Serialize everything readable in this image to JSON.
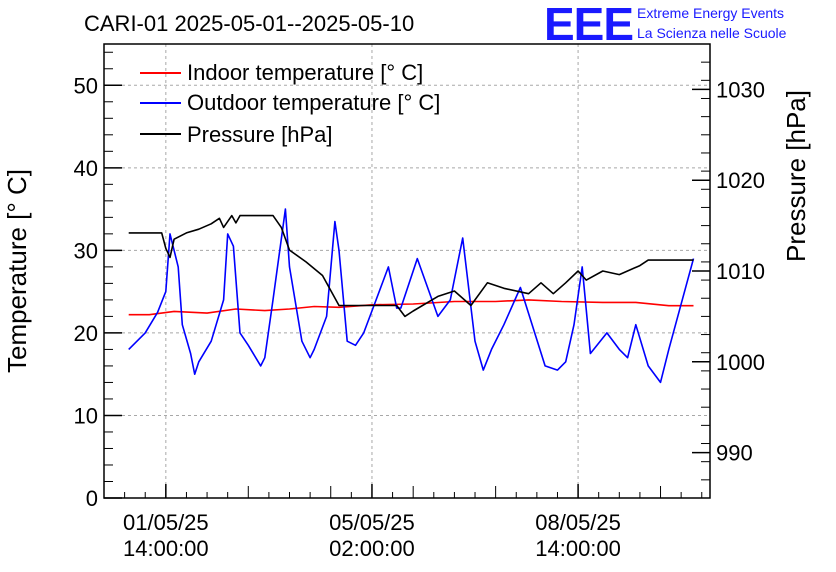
{
  "chart_data": {
    "type": "line",
    "title": "CARI-01 2025-05-01--2025-05-10",
    "ylabel": "Temperature [° C]",
    "y2label": "Pressure [hPa]",
    "ylim": [
      0,
      55
    ],
    "y2lim": [
      985,
      1035
    ],
    "xlim": [
      -0.75,
      6.6
    ],
    "grid": true,
    "legend_position": "top-left",
    "yticks": [
      0,
      10,
      20,
      30,
      40,
      50
    ],
    "y2ticks": [
      990,
      1000,
      1010,
      1020,
      1030
    ],
    "xticks": [
      {
        "x": 0,
        "line1": "01/05/25",
        "line2": "14:00:00"
      },
      {
        "x": 2.5,
        "line1": "05/05/25",
        "line2": "02:00:00"
      },
      {
        "x": 5,
        "line1": "08/05/25",
        "line2": "14:00:00"
      }
    ],
    "series": [
      {
        "name": "Indoor temperature [° C]",
        "color": "#ff0000",
        "axis": "left",
        "x": [
          -0.45,
          -0.2,
          0.1,
          0.5,
          0.85,
          1.2,
          1.5,
          1.8,
          2.1,
          2.5,
          3.0,
          3.5,
          4.0,
          4.4,
          4.8,
          5.3,
          5.7,
          6.1,
          6.4
        ],
        "y": [
          22.2,
          22.2,
          22.6,
          22.4,
          22.9,
          22.7,
          22.9,
          23.2,
          23.1,
          23.4,
          23.5,
          23.8,
          23.8,
          24.0,
          23.8,
          23.7,
          23.7,
          23.3,
          23.3
        ]
      },
      {
        "name": "Outdoor temperature [° C]",
        "color": "#0000ff",
        "axis": "left",
        "x": [
          -0.45,
          -0.25,
          -0.1,
          0.0,
          0.05,
          0.15,
          0.2,
          0.3,
          0.35,
          0.4,
          0.55,
          0.7,
          0.75,
          0.82,
          0.9,
          1.0,
          1.15,
          1.2,
          1.3,
          1.45,
          1.5,
          1.65,
          1.75,
          1.8,
          1.95,
          2.05,
          2.1,
          2.2,
          2.3,
          2.4,
          2.55,
          2.7,
          2.8,
          2.85,
          3.05,
          3.3,
          3.45,
          3.6,
          3.75,
          3.85,
          3.95,
          4.1,
          4.3,
          4.6,
          4.75,
          4.85,
          4.95,
          5.05,
          5.15,
          5.35,
          5.5,
          5.6,
          5.7,
          5.85,
          6.0,
          6.1,
          6.4
        ],
        "y": [
          18,
          20,
          22.5,
          25,
          32,
          28,
          21,
          17.5,
          15,
          16.5,
          19,
          24,
          32,
          30.5,
          20,
          18.5,
          16,
          17,
          24,
          35,
          28,
          19,
          17,
          18,
          22,
          33.5,
          30,
          19,
          18.5,
          20,
          24,
          28,
          23,
          23,
          29,
          22,
          24,
          31.5,
          19,
          15.5,
          18,
          21,
          25.5,
          16,
          15.5,
          16.5,
          21,
          28,
          17.5,
          20,
          18,
          17,
          21,
          16,
          14,
          18,
          29
        ]
      },
      {
        "name": "Pressure [hPa]",
        "color": "#000000",
        "axis": "right",
        "x": [
          -0.45,
          -0.05,
          0.0,
          0.05,
          0.1,
          0.25,
          0.4,
          0.55,
          0.65,
          0.7,
          0.8,
          0.85,
          0.9,
          1.3,
          1.4,
          1.5,
          1.7,
          1.9,
          2.1,
          2.3,
          2.5,
          2.6,
          2.7,
          2.8,
          2.9,
          3.0,
          3.3,
          3.5,
          3.7,
          3.9,
          4.1,
          4.4,
          4.55,
          4.7,
          4.85,
          5.0,
          5.1,
          5.3,
          5.5,
          5.75,
          5.85,
          5.95,
          6.4
        ],
        "y": [
          1014.2,
          1014.2,
          1012.5,
          1011.5,
          1013.5,
          1014.2,
          1014.6,
          1015.2,
          1015.8,
          1014.8,
          1016.1,
          1015.3,
          1016.1,
          1016.1,
          1014.8,
          1012.3,
          1011.0,
          1009.5,
          1006.2,
          1006.2,
          1006.2,
          1006.2,
          1006.2,
          1006.2,
          1005.0,
          1005.6,
          1007.2,
          1007.8,
          1006.2,
          1008.7,
          1008.1,
          1007.5,
          1008.7,
          1007.5,
          1008.7,
          1010.0,
          1009.0,
          1010.0,
          1009.6,
          1010.6,
          1011.2,
          1011.2,
          1011.2
        ]
      }
    ]
  },
  "logo": {
    "mark": "EEE",
    "line1": "Extreme Energy Events",
    "line2": "La Scienza nelle Scuole"
  }
}
